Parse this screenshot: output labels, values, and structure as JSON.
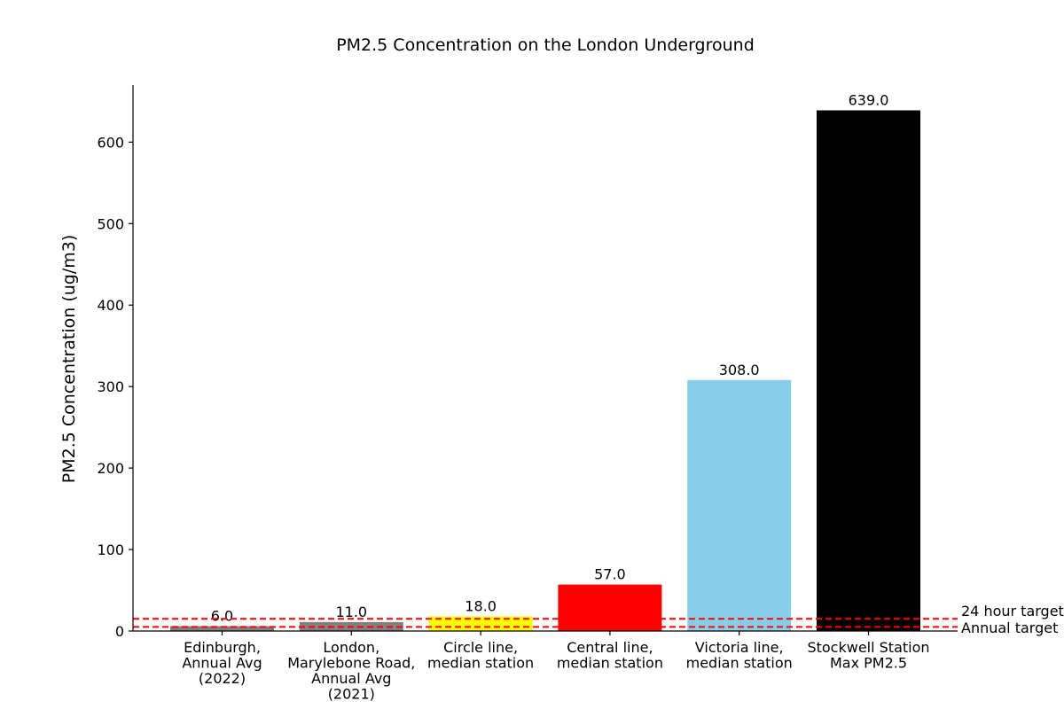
{
  "chart_data": {
    "type": "bar",
    "title": "PM2.5 Concentration on the London Underground",
    "xlabel": "",
    "ylabel": "PM2.5 Concentration (ug/m3)",
    "ylim": [
      0,
      670
    ],
    "yticks": [
      0,
      100,
      200,
      300,
      400,
      500,
      600
    ],
    "categories": [
      [
        "Edinburgh,",
        "Annual Avg",
        "(2022)"
      ],
      [
        "London,",
        "Marylebone Road,",
        "Annual Avg",
        "(2021)"
      ],
      [
        "Circle line,",
        "median station"
      ],
      [
        "Central line,",
        "median station"
      ],
      [
        "Victoria line,",
        "median station"
      ],
      [
        "Stockwell Station",
        "Max PM2.5"
      ]
    ],
    "values": [
      6.0,
      11.0,
      18.0,
      57.0,
      308.0,
      639.0
    ],
    "data_labels": [
      "6.0",
      "11.0",
      "18.0",
      "57.0",
      "308.0",
      "639.0"
    ],
    "colors": [
      "#808080",
      "#808080",
      "#ffff00",
      "#ff0000",
      "#87ceeb",
      "#000000"
    ],
    "reference_lines": [
      {
        "label": "24 hour target",
        "value": 15,
        "color": "#ff0000",
        "style": "dashed"
      },
      {
        "label": "Annual target",
        "value": 5,
        "color": "#ff0000",
        "style": "dashed"
      }
    ],
    "grid": false,
    "legend": "none"
  }
}
